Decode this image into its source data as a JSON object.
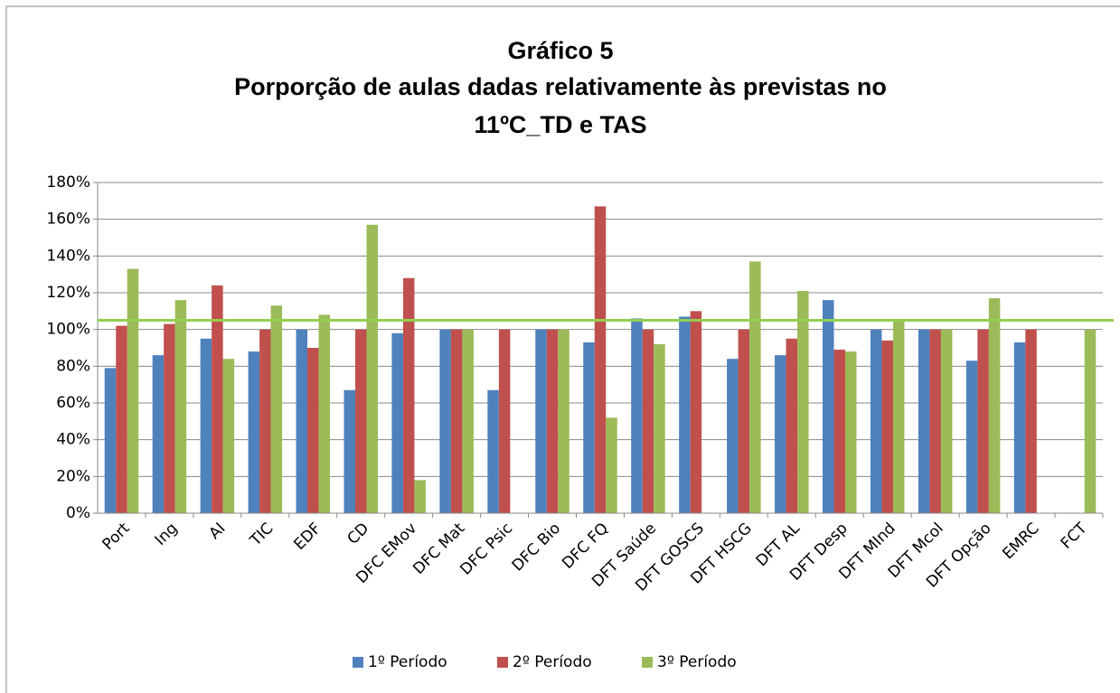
{
  "chart_data": {
    "type": "bar",
    "title": [
      "Gráfico 5",
      "Porporção de aulas dadas relativamente às previstas no",
      "11ºC_TD e TAS"
    ],
    "categories": [
      "Port",
      "Ing",
      "AI",
      "TIC",
      "EDF",
      "CD",
      "DFC EMov",
      "DFC Mat",
      "DFC Psic",
      "DFC Bio",
      "DFC FQ",
      "DFT Saúde",
      "DFT GOSCS",
      "DFT HSCG",
      "DFT AL",
      "DFT Desp",
      "DFT MInd",
      "DFT Mcol",
      "DFT Opção",
      "EMRC",
      "FCT"
    ],
    "series": [
      {
        "name": "1º Período",
        "color": "#4f81bd",
        "values": [
          79,
          86,
          95,
          88,
          100,
          67,
          98,
          100,
          67,
          100,
          93,
          106,
          107,
          84,
          86,
          116,
          100,
          100,
          83,
          93,
          null
        ]
      },
      {
        "name": "2º Período",
        "color": "#c0504d",
        "values": [
          102,
          103,
          124,
          100,
          90,
          100,
          128,
          100,
          100,
          100,
          167,
          100,
          110,
          100,
          95,
          89,
          94,
          100,
          100,
          100,
          null
        ]
      },
      {
        "name": "3º Período",
        "color": "#9bbb59",
        "values": [
          133,
          116,
          84,
          113,
          108,
          157,
          18,
          100,
          null,
          100,
          52,
          92,
          null,
          137,
          121,
          88,
          105,
          100,
          117,
          null,
          100
        ]
      }
    ],
    "reference_line": {
      "value": 105,
      "color": "#92d050"
    },
    "ylim": [
      0,
      180
    ],
    "yticks": [
      {
        "value": 0,
        "label": "0%"
      },
      {
        "value": 20,
        "label": "20%"
      },
      {
        "value": 40,
        "label": "40%"
      },
      {
        "value": 60,
        "label": "60%"
      },
      {
        "value": 80,
        "label": "80%"
      },
      {
        "value": 100,
        "label": "100%"
      },
      {
        "value": 120,
        "label": "120%"
      },
      {
        "value": 140,
        "label": "140%"
      },
      {
        "value": 160,
        "label": "160%"
      },
      {
        "value": 180,
        "label": "180%"
      }
    ],
    "grid": true,
    "legend": "bottom"
  }
}
